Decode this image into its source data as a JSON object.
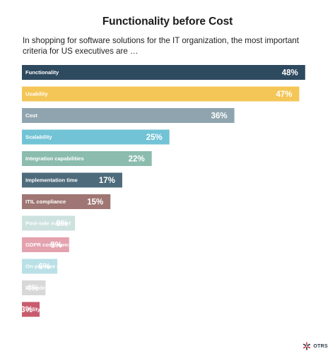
{
  "chart_data": {
    "type": "bar",
    "orientation": "horizontal",
    "title": "Functionality before Cost",
    "subtitle": "In shopping for software solutions for the IT organization, the most important criteria for US executives are …",
    "categories": [
      "Functionality",
      "Usability",
      "Cost",
      "Scalability",
      "Integration capabilities",
      "Implementation time",
      "ITIL compliance",
      "Post-sale support",
      "GDPR compliance / security practices",
      "On-premise availability",
      "Provider industry expertise",
      "Utility in other operational areas"
    ],
    "values": [
      48,
      47,
      36,
      25,
      22,
      17,
      15,
      9,
      8,
      6,
      4,
      3
    ],
    "value_labels": [
      "48%",
      "47%",
      "36%",
      "25%",
      "22%",
      "17%",
      "15%",
      "9%",
      "8%",
      "6%",
      "4%",
      "3%"
    ],
    "colors": [
      "#2e4a5f",
      "#f4c657",
      "#8fa4ae",
      "#72c3d5",
      "#8bbcad",
      "#4d6b7b",
      "#9f7673",
      "#cde2de",
      "#e4a1ae",
      "#b9e0e6",
      "#d8d8d8",
      "#c95b6e"
    ],
    "xlabel": "",
    "ylabel": "",
    "unit": "%",
    "grid": false,
    "legend": "none"
  },
  "logo": {
    "text": "OTRS",
    "icon": "otrs-star-icon"
  }
}
